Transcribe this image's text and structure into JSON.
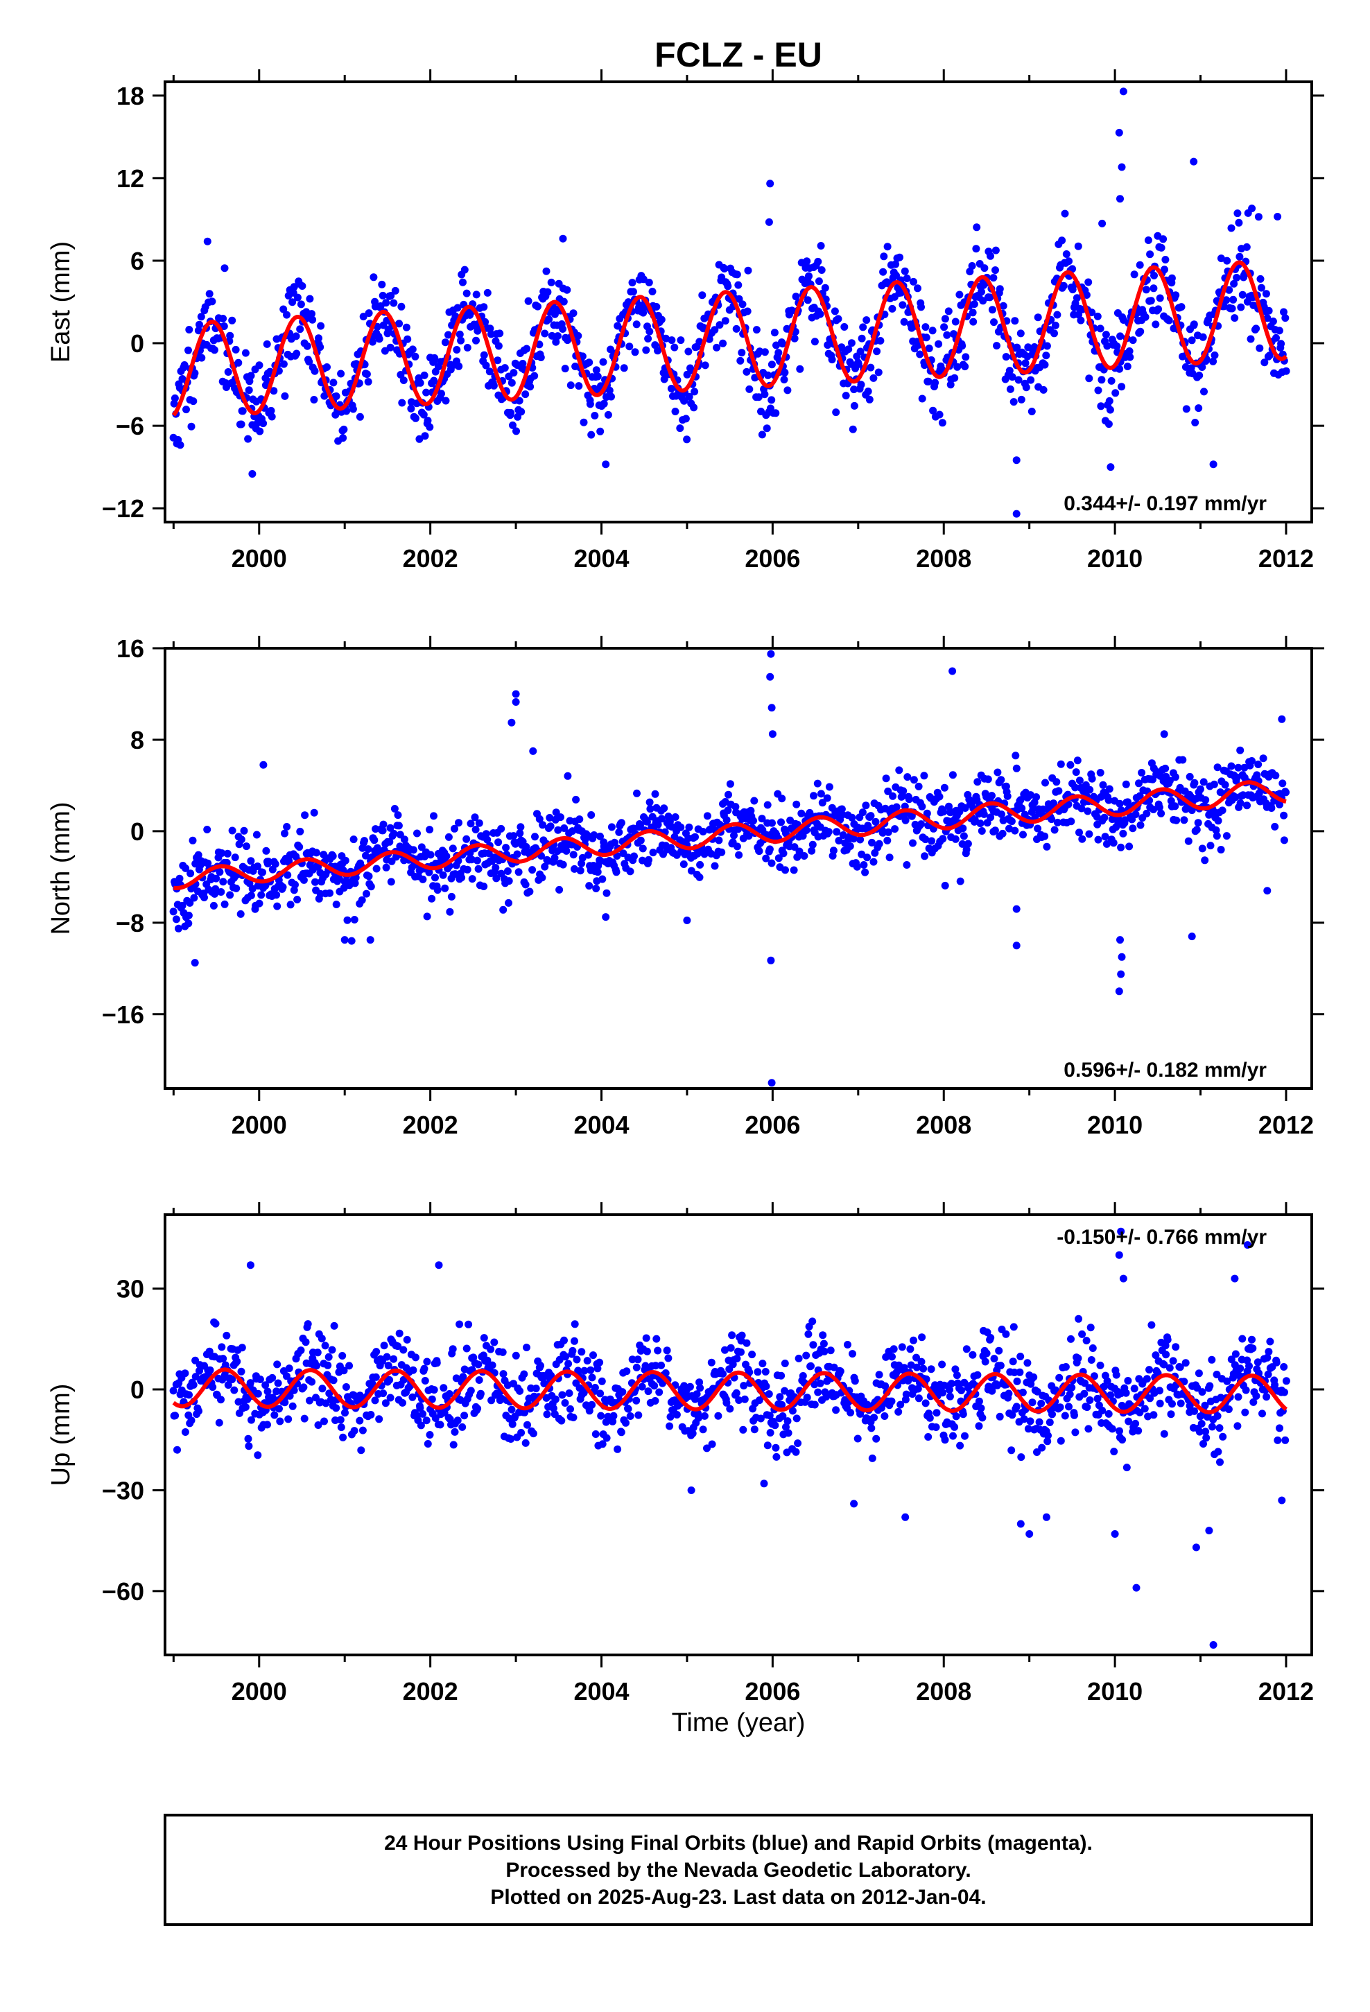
{
  "figure": {
    "title": "FCLZ - EU",
    "xlabel": "Time (year)",
    "footnote": [
      "24 Hour Positions Using Final Orbits (blue) and Rapid Orbits (magenta).",
      "Processed by the Nevada Geodetic Laboratory.",
      "Plotted on 2025-Aug-23. Last data on 2012-Jan-04."
    ]
  },
  "colors": {
    "data": "#0000ff",
    "model": "#ff0000",
    "axis": "#000000"
  },
  "chart_data": [
    {
      "type": "scatter",
      "name": "east",
      "ylabel": "East (mm)",
      "xlim": [
        1998.9,
        2012.3
      ],
      "ylim": [
        -13,
        19
      ],
      "xticks": [
        2000,
        2002,
        2004,
        2006,
        2008,
        2010,
        2012
      ],
      "xtick_labels": [
        "2000",
        "2002",
        "2004",
        "2006",
        "2008",
        "2010",
        "2012"
      ],
      "yticks": [
        18,
        12,
        6,
        0,
        -6,
        -12
      ],
      "ytick_labels": [
        "18",
        "12",
        "6",
        "0",
        "−6",
        "−12"
      ],
      "rate_label": "0.344+/- 0.197 mm/yr",
      "rate_position": "bottom-right",
      "x_range": [
        1999.0,
        2012.0
      ],
      "model": {
        "offset": -2.0,
        "trend": 0.344,
        "amp_start": 3.4,
        "amp_end": 3.6,
        "phase_year": 1999.45
      },
      "scatter": {
        "sd": 1.7,
        "count": 1300,
        "seed": 11
      },
      "outliers": [
        [
          2005.97,
          11.6
        ],
        [
          2005.96,
          8.8
        ],
        [
          2010.05,
          15.3
        ],
        [
          2010.08,
          12.8
        ],
        [
          2010.1,
          18.3
        ],
        [
          2010.06,
          10.5
        ],
        [
          2010.92,
          13.2
        ],
        [
          2009.85,
          8.7
        ],
        [
          1999.92,
          -9.5
        ],
        [
          2004.05,
          -8.8
        ],
        [
          2008.85,
          -12.4
        ],
        [
          2008.85,
          -8.5
        ],
        [
          2009.95,
          -9.0
        ],
        [
          2011.15,
          -8.8
        ],
        [
          2011.9,
          9.2
        ],
        [
          2011.6,
          9.8
        ],
        [
          2003.55,
          7.6
        ]
      ]
    },
    {
      "type": "scatter",
      "name": "north",
      "ylabel": "North (mm)",
      "xlim": [
        1998.9,
        2012.3
      ],
      "ylim": [
        -22.5,
        16
      ],
      "xticks": [
        2000,
        2002,
        2004,
        2006,
        2008,
        2010,
        2012
      ],
      "xtick_labels": [
        "2000",
        "2002",
        "2004",
        "2006",
        "2008",
        "2010",
        "2012"
      ],
      "yticks": [
        16,
        8,
        0,
        -8,
        -16
      ],
      "ytick_labels": [
        "16",
        "8",
        "0",
        "−8",
        "−16"
      ],
      "rate_label": "0.596+/- 0.182 mm/yr",
      "rate_position": "bottom-right",
      "x_range": [
        1999.0,
        2012.0
      ],
      "model": {
        "offset": -4.2,
        "trend": 0.596,
        "amp_start": 0.8,
        "amp_end": 1.0,
        "phase_year": 1999.55
      },
      "scatter": {
        "sd": 1.6,
        "count": 1300,
        "seed": 23
      },
      "outliers": [
        [
          2003.0,
          12.0
        ],
        [
          2003.0,
          11.3
        ],
        [
          2002.95,
          9.5
        ],
        [
          2003.2,
          7.0
        ],
        [
          2005.98,
          15.5
        ],
        [
          2005.97,
          13.5
        ],
        [
          2005.99,
          10.8
        ],
        [
          2006.0,
          8.5
        ],
        [
          2008.1,
          14.0
        ],
        [
          2011.95,
          9.8
        ],
        [
          2005.98,
          -11.3
        ],
        [
          2005.99,
          -22.0
        ],
        [
          2010.05,
          -14.0
        ],
        [
          2010.07,
          -12.5
        ],
        [
          2010.08,
          -11.0
        ],
        [
          2010.06,
          -9.5
        ],
        [
          2008.85,
          -10.0
        ],
        [
          2008.85,
          -6.8
        ],
        [
          2010.9,
          -9.2
        ],
        [
          1999.25,
          -11.5
        ],
        [
          2001.0,
          -9.5
        ],
        [
          2001.3,
          -9.5
        ],
        [
          2004.05,
          -7.5
        ],
        [
          2005.0,
          -7.8
        ],
        [
          2011.78,
          -5.2
        ],
        [
          2000.05,
          5.8
        ]
      ]
    },
    {
      "type": "scatter",
      "name": "up",
      "ylabel": "Up (mm)",
      "xlim": [
        1998.9,
        2012.3
      ],
      "ylim": [
        -79,
        52
      ],
      "xticks": [
        2000,
        2002,
        2004,
        2006,
        2008,
        2010,
        2012
      ],
      "xtick_labels": [
        "2000",
        "2002",
        "2004",
        "2006",
        "2008",
        "2010",
        "2012"
      ],
      "yticks": [
        30,
        0,
        -30,
        -60
      ],
      "ytick_labels": [
        "30",
        "0",
        "−30",
        "−60"
      ],
      "rate_label": "-0.150+/- 0.766 mm/yr",
      "rate_position": "top-right",
      "x_range": [
        1999.0,
        2012.0
      ],
      "model": {
        "offset": 0.5,
        "trend": -0.15,
        "amp_start": 5.5,
        "amp_end": 5.5,
        "phase_year": 1999.6
      },
      "scatter": {
        "sd": 6.5,
        "count": 1300,
        "seed": 37
      },
      "outliers": [
        [
          1999.9,
          37.0
        ],
        [
          2002.1,
          37.0
        ],
        [
          2010.05,
          40.0
        ],
        [
          2010.07,
          47.0
        ],
        [
          2010.1,
          33.0
        ],
        [
          2011.55,
          43.0
        ],
        [
          2011.4,
          33.0
        ],
        [
          2010.25,
          -59.0
        ],
        [
          2011.15,
          -76.0
        ],
        [
          2010.95,
          -47.0
        ],
        [
          2011.1,
          -42.0
        ],
        [
          2009.0,
          -43.0
        ],
        [
          2008.9,
          -40.0
        ],
        [
          2005.05,
          -30.0
        ],
        [
          2005.9,
          -28.0
        ],
        [
          2006.95,
          -34.0
        ],
        [
          2010.0,
          -43.0
        ],
        [
          2011.95,
          -33.0
        ],
        [
          2007.55,
          -38.0
        ],
        [
          2009.2,
          -38.0
        ]
      ]
    }
  ]
}
